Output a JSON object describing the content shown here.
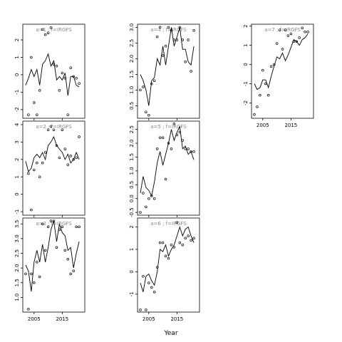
{
  "chart_data": {
    "type": "line",
    "xlabel": "Year",
    "panel_order": "column-major, 3 columns",
    "xlim": [
      2001,
      2023
    ],
    "xticks": [
      2005,
      2015
    ],
    "panels": [
      {
        "title": "a=1 ; f=IRGFS",
        "ylim": [
          -2.5,
          2.9
        ],
        "yticks": [
          -2,
          -1,
          0,
          1,
          2
        ],
        "show_xticks": false,
        "line_x": [
          2002,
          2003,
          2004,
          2005,
          2006,
          2007,
          2008,
          2009,
          2010,
          2011,
          2012,
          2013,
          2014,
          2015,
          2016,
          2017,
          2018,
          2019,
          2020,
          2021
        ],
        "line_y": [
          -0.6,
          -0.2,
          0.3,
          -0.1,
          0.3,
          -0.6,
          0.6,
          0.8,
          1.2,
          0.5,
          0.8,
          -0.3,
          -0.1,
          -0.3,
          0.1,
          -1.2,
          -0.1,
          -0.1,
          -0.6,
          -0.7
        ],
        "points_x": [
          2003,
          2004,
          2005,
          2006,
          2007,
          2008,
          2009,
          2010,
          2011,
          2012,
          2013,
          2014,
          2015,
          2016,
          2017,
          2018,
          2019,
          2020,
          2021
        ],
        "points_y": [
          -2.3,
          1.0,
          -1.6,
          -2.3,
          -0.9,
          2.6,
          2.3,
          2.4,
          2.7,
          0.6,
          0.5,
          -0.9,
          0.1,
          -0.2,
          -2.3,
          0.4,
          -0.1,
          -0.2,
          -0.5
        ]
      },
      {
        "title": "a=2 ; f=IRGFS",
        "ylim": [
          -1.2,
          4.2
        ],
        "yticks": [
          -1,
          0,
          1,
          2,
          3,
          4
        ],
        "show_xticks": false,
        "line_x": [
          2002,
          2003,
          2004,
          2005,
          2006,
          2007,
          2008,
          2009,
          2010,
          2011,
          2012,
          2013,
          2014,
          2015,
          2016,
          2017,
          2018,
          2019,
          2020,
          2021
        ],
        "line_y": [
          1.9,
          1.3,
          1.5,
          2.1,
          2.3,
          2.1,
          2.4,
          2.0,
          2.8,
          3.0,
          3.3,
          2.8,
          2.6,
          2.4,
          2.0,
          2.3,
          1.8,
          2.0,
          2.4,
          2.0
        ],
        "points_x": [
          2003,
          2004,
          2005,
          2006,
          2007,
          2008,
          2009,
          2010,
          2011,
          2012,
          2013,
          2014,
          2015,
          2016,
          2017,
          2018,
          2019,
          2020,
          2021
        ],
        "points_y": [
          1.2,
          -0.9,
          1.4,
          1.8,
          1.0,
          1.8,
          2.4,
          3.7,
          3.9,
          3.7,
          2.8,
          2.1,
          3.7,
          2.6,
          1.7,
          2.2,
          2.0,
          2.1,
          3.3
        ]
      },
      {
        "title": "a=3 ; f=IRGFS",
        "ylim": [
          0.5,
          3.7
        ],
        "yticks": [
          1.0,
          1.5,
          2.0,
          2.5,
          3.0,
          3.5
        ],
        "show_xticks": true,
        "line_x": [
          2002,
          2003,
          2004,
          2005,
          2006,
          2007,
          2008,
          2009,
          2010,
          2011,
          2012,
          2013,
          2014,
          2015,
          2016,
          2017,
          2018,
          2019,
          2020,
          2021
        ],
        "line_y": [
          2.1,
          1.9,
          1.2,
          2.2,
          2.6,
          2.2,
          2.8,
          2.2,
          2.7,
          3.3,
          3.6,
          2.9,
          3.5,
          3.2,
          3.1,
          2.6,
          2.7,
          2.0,
          2.5,
          2.9
        ],
        "points_x": [
          2002,
          2003,
          2004,
          2005,
          2006,
          2007,
          2008,
          2009,
          2010,
          2011,
          2012,
          2013,
          2014,
          2015,
          2016,
          2017,
          2018,
          2019,
          2020,
          2021
        ],
        "points_y": [
          1.8,
          0.6,
          1.8,
          1.5,
          2.2,
          1.7,
          3.5,
          2.6,
          3.4,
          3.6,
          3.6,
          2.7,
          3.3,
          3.4,
          2.6,
          2.3,
          1.8,
          1.9,
          3.4,
          3.4
        ]
      },
      {
        "title": "a=4 ; f=IRGFS",
        "ylim": [
          0.1,
          3.1
        ],
        "yticks": [
          0.5,
          1.0,
          1.5,
          2.0,
          2.5,
          3.0
        ],
        "show_xticks": false,
        "line_x": [
          2002,
          2003,
          2004,
          2005,
          2006,
          2007,
          2008,
          2009,
          2010,
          2011,
          2012,
          2013,
          2014,
          2015,
          2016,
          2017,
          2018,
          2019,
          2020,
          2021
        ],
        "line_y": [
          1.5,
          1.3,
          1.0,
          0.5,
          1.3,
          1.4,
          2.0,
          1.8,
          2.4,
          1.8,
          2.4,
          3.0,
          2.4,
          2.7,
          3.0,
          2.3,
          2.3,
          1.9,
          1.8,
          2.4
        ],
        "points_x": [
          2002,
          2003,
          2004,
          2005,
          2006,
          2007,
          2008,
          2009,
          2010,
          2011,
          2012,
          2013,
          2014,
          2015,
          2016,
          2017,
          2018,
          2019,
          2020,
          2021
        ],
        "points_y": [
          1.0,
          1.1,
          0.3,
          0.2,
          1.2,
          1.3,
          2.7,
          3.0,
          2.1,
          2.4,
          3.0,
          2.9,
          2.6,
          2.6,
          3.0,
          2.6,
          1.9,
          2.6,
          1.6,
          2.9
        ]
      },
      {
        "title": "a=5 ; f=IRGFS",
        "ylim": [
          -0.6,
          2.8
        ],
        "yticks": [
          -0.5,
          0.0,
          0.5,
          1.0,
          1.5,
          2.0,
          2.5
        ],
        "show_xticks": false,
        "line_x": [
          2002,
          2003,
          2004,
          2005,
          2006,
          2007,
          2008,
          2009,
          2010,
          2011,
          2012,
          2013,
          2014,
          2015,
          2016,
          2017,
          2018,
          2019,
          2020,
          2021
        ],
        "line_y": [
          0.2,
          0.8,
          0.4,
          0.3,
          0.1,
          0.6,
          1.3,
          1.7,
          1.2,
          1.6,
          2.0,
          2.5,
          2.1,
          2.4,
          2.6,
          1.8,
          1.9,
          1.6,
          1.7,
          1.4
        ],
        "points_x": [
          2002,
          2003,
          2004,
          2005,
          2006,
          2007,
          2008,
          2009,
          2010,
          2011,
          2012,
          2013,
          2014,
          2015,
          2016,
          2017,
          2018,
          2019,
          2020,
          2021
        ],
        "points_y": [
          -0.5,
          0.2,
          -0.3,
          0.0,
          0.1,
          0.0,
          1.8,
          2.2,
          2.2,
          0.7,
          2.0,
          1.8,
          2.7,
          2.3,
          2.4,
          2.1,
          1.8,
          1.8,
          1.7,
          1.7
        ]
      },
      {
        "title": "a=6 ; f=IRGFS",
        "ylim": [
          -1.8,
          2.4
        ],
        "yticks": [
          -1,
          0,
          1,
          2
        ],
        "show_xticks": true,
        "line_x": [
          2002,
          2003,
          2004,
          2005,
          2006,
          2007,
          2008,
          2009,
          2010,
          2011,
          2012,
          2013,
          2014,
          2015,
          2016,
          2017,
          2018,
          2019,
          2020,
          2021
        ],
        "line_y": [
          -0.5,
          -0.9,
          -0.2,
          -0.1,
          -0.4,
          -0.6,
          0.0,
          1.0,
          0.9,
          1.2,
          0.7,
          1.0,
          1.2,
          1.6,
          2.0,
          1.6,
          1.9,
          2.0,
          1.6,
          1.3
        ],
        "points_x": [
          2002,
          2003,
          2004,
          2005,
          2006,
          2007,
          2008,
          2009,
          2010,
          2011,
          2012,
          2013,
          2014,
          2015,
          2016,
          2017,
          2018,
          2019,
          2020,
          2021
        ],
        "points_y": [
          -1.7,
          -0.2,
          -1.7,
          -0.5,
          -0.7,
          -0.9,
          0.2,
          1.3,
          1.3,
          0.7,
          0.6,
          1.2,
          1.1,
          2.2,
          1.3,
          1.2,
          1.5,
          1.6,
          1.4,
          1.5
        ]
      },
      {
        "title": "a=7 ; f=IRGFS",
        "ylim": [
          -2.8,
          2.1
        ],
        "yticks": [
          -2,
          -1,
          0,
          1,
          2
        ],
        "show_xticks": true,
        "line_x": [
          2002,
          2003,
          2004,
          2005,
          2006,
          2007,
          2008,
          2009,
          2010,
          2011,
          2012,
          2013,
          2014,
          2015,
          2016,
          2017,
          2018,
          2019,
          2020,
          2021
        ],
        "line_y": [
          -1.0,
          -1.3,
          -1.2,
          -0.8,
          -0.8,
          -1.2,
          -0.6,
          -0.1,
          0.4,
          0.3,
          0.6,
          0.2,
          0.5,
          0.9,
          1.3,
          1.2,
          1.0,
          1.3,
          1.4,
          1.6
        ],
        "points_x": [
          2002,
          2003,
          2004,
          2005,
          2006,
          2007,
          2008,
          2009,
          2010,
          2011,
          2012,
          2013,
          2014,
          2015,
          2016,
          2017,
          2018,
          2019,
          2020,
          2021
        ],
        "points_y": [
          -2.6,
          -2.2,
          -1.6,
          -0.3,
          -1.0,
          -1.6,
          -0.1,
          0.0,
          1.1,
          1.8,
          0.8,
          1.8,
          1.5,
          1.6,
          1.2,
          1.2,
          1.4,
          1.9,
          1.7,
          1.7
        ]
      }
    ]
  }
}
